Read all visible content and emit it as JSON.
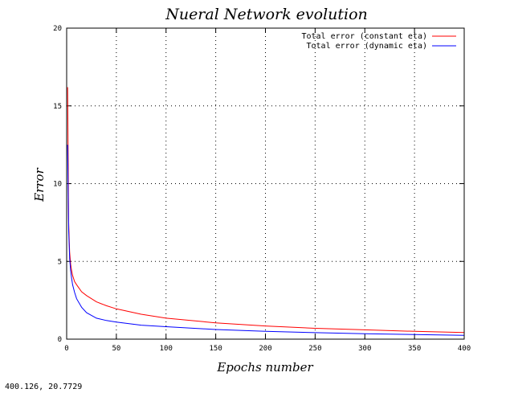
{
  "chart_data": {
    "type": "line",
    "title": "Nueral Network evolution",
    "xlabel": "Epochs number",
    "ylabel": "Error",
    "xlim": [
      0,
      400
    ],
    "ylim": [
      0,
      20
    ],
    "xticks": [
      0,
      50,
      100,
      150,
      200,
      250,
      300,
      350,
      400
    ],
    "yticks": [
      0,
      5,
      10,
      15,
      20
    ],
    "grid": true,
    "legend_position": "top-right",
    "series": [
      {
        "name": "Total error (constant eta)",
        "color": "#ff0000",
        "x": [
          1,
          2,
          3,
          4,
          5,
          6,
          8,
          10,
          15,
          20,
          30,
          40,
          50,
          75,
          100,
          150,
          200,
          250,
          300,
          350,
          400
        ],
        "y": [
          16.2,
          7.5,
          5.6,
          4.8,
          4.4,
          4.1,
          3.7,
          3.5,
          3.05,
          2.8,
          2.4,
          2.15,
          1.95,
          1.6,
          1.35,
          1.05,
          0.85,
          0.7,
          0.6,
          0.5,
          0.43
        ]
      },
      {
        "name": "Total error (dynamic eta)",
        "color": "#0000ff",
        "x": [
          1,
          2,
          3,
          4,
          5,
          6,
          8,
          10,
          15,
          20,
          30,
          40,
          50,
          75,
          100,
          150,
          200,
          250,
          300,
          350,
          400
        ],
        "y": [
          12.5,
          7.0,
          5.2,
          4.4,
          3.9,
          3.5,
          3.0,
          2.6,
          2.05,
          1.7,
          1.35,
          1.2,
          1.1,
          0.9,
          0.8,
          0.62,
          0.5,
          0.42,
          0.35,
          0.3,
          0.25
        ]
      }
    ]
  },
  "status": {
    "coordinates": "400.126,  20.7729"
  }
}
